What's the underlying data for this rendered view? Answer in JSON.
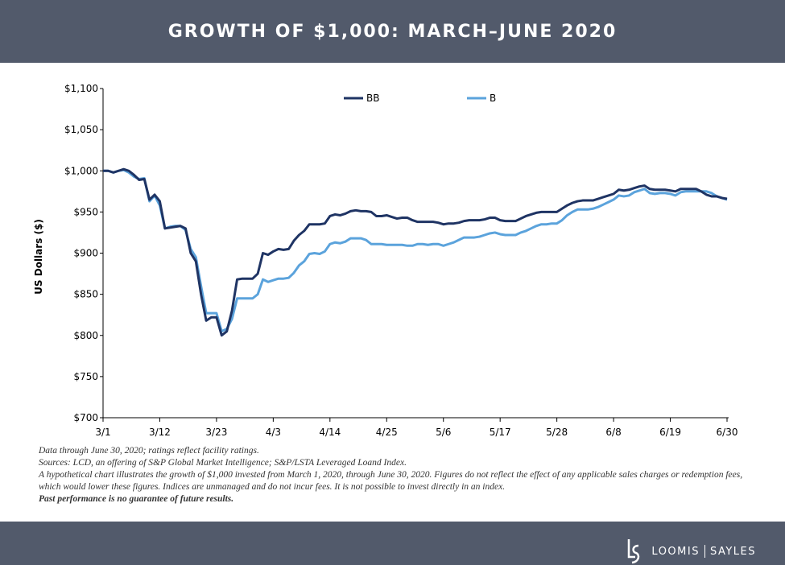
{
  "chart_data": {
    "type": "line",
    "title": "GROWTH OF $1,000: MARCH–JUNE 2020",
    "y_label": "US Dollars ($)",
    "categories": [
      "3/1",
      null,
      null,
      null,
      null,
      null,
      null,
      null,
      null,
      null,
      null,
      "3/12",
      null,
      null,
      null,
      null,
      null,
      null,
      null,
      null,
      null,
      null,
      "3/23",
      null,
      null,
      null,
      null,
      null,
      null,
      null,
      null,
      null,
      null,
      "4/3",
      null,
      null,
      null,
      null,
      null,
      null,
      null,
      null,
      null,
      null,
      "4/14",
      null,
      null,
      null,
      null,
      null,
      null,
      null,
      null,
      null,
      null,
      "4/25",
      null,
      null,
      null,
      null,
      null,
      null,
      null,
      null,
      null,
      null,
      "5/6",
      null,
      null,
      null,
      null,
      null,
      null,
      null,
      null,
      null,
      null,
      "5/17",
      null,
      null,
      null,
      null,
      null,
      null,
      null,
      null,
      null,
      null,
      "5/28",
      null,
      null,
      null,
      null,
      null,
      null,
      null,
      null,
      null,
      null,
      "6/8",
      null,
      null,
      null,
      null,
      null,
      null,
      null,
      null,
      null,
      null,
      "6/19",
      null,
      null,
      null,
      null,
      null,
      null,
      null,
      null,
      null,
      null,
      "6/30"
    ],
    "series": [
      {
        "name": "BB",
        "color": "#1f3464",
        "values": [
          1000,
          1000,
          998,
          1000,
          1002,
          1000,
          995,
          989,
          990,
          965,
          971,
          963,
          930,
          931,
          932,
          933,
          930,
          900,
          890,
          850,
          818,
          822,
          822,
          800,
          805,
          830,
          868,
          869,
          869,
          869,
          875,
          900,
          898,
          902,
          905,
          904,
          905,
          915,
          922,
          927,
          935,
          935,
          935,
          936,
          945,
          947,
          946,
          948,
          951,
          952,
          951,
          951,
          950,
          945,
          945,
          946,
          944,
          942,
          943,
          943,
          940,
          938,
          938,
          938,
          938,
          937,
          935,
          936,
          936,
          937,
          939,
          940,
          940,
          940,
          941,
          943,
          943,
          940,
          939,
          939,
          939,
          942,
          945,
          947,
          949,
          950,
          950,
          950,
          950,
          954,
          958,
          961,
          963,
          964,
          964,
          964,
          966,
          968,
          970,
          972,
          977,
          976,
          977,
          979,
          981,
          982,
          978,
          977,
          977,
          977,
          976,
          975,
          978,
          978,
          978,
          978,
          975,
          971,
          969,
          969,
          967,
          966
        ]
      },
      {
        "name": "B",
        "color": "#5ba3dc",
        "values": [
          1000,
          1000,
          998,
          1000,
          1001,
          998,
          993,
          990,
          991,
          963,
          970,
          958,
          930,
          932,
          933,
          933,
          928,
          905,
          895,
          860,
          827,
          827,
          827,
          805,
          808,
          820,
          845,
          845,
          845,
          845,
          850,
          868,
          865,
          867,
          869,
          869,
          870,
          876,
          885,
          890,
          899,
          900,
          899,
          902,
          911,
          913,
          912,
          914,
          918,
          918,
          918,
          916,
          911,
          911,
          911,
          910,
          910,
          910,
          910,
          909,
          909,
          911,
          911,
          910,
          911,
          911,
          909,
          911,
          913,
          916,
          919,
          919,
          919,
          920,
          922,
          924,
          925,
          923,
          922,
          922,
          922,
          925,
          927,
          930,
          933,
          935,
          935,
          936,
          936,
          940,
          946,
          950,
          953,
          953,
          953,
          954,
          956,
          959,
          962,
          965,
          970,
          969,
          970,
          974,
          976,
          978,
          973,
          972,
          973,
          973,
          972,
          970,
          974,
          975,
          975,
          975,
          975,
          975,
          973,
          969,
          967,
          965
        ]
      }
    ],
    "ylim": [
      700,
      1100
    ],
    "yticks": [
      {
        "value": 700,
        "label": "$700"
      },
      {
        "value": 750,
        "label": "$750"
      },
      {
        "value": 800,
        "label": "$800"
      },
      {
        "value": 850,
        "label": "$850"
      },
      {
        "value": 900,
        "label": "$900"
      },
      {
        "value": 950,
        "label": "$950"
      },
      {
        "value": 1000,
        "label": "$1,000"
      },
      {
        "value": 1050,
        "label": "$1,050"
      },
      {
        "value": 1100,
        "label": "$1,100"
      }
    ],
    "grid": false,
    "legend": "top"
  },
  "notes": [
    "Data through June 30, 2020; ratings reflect facility ratings.",
    "Sources: LCD, an offering of S&P Global Market Intelligence; S&P/LSTA Leveraged Loand Index.",
    "A hypothetical chart illustrates the growth of $1,000 invested from March 1, 2020, through June 30, 2020. Figures do not reflect the effect of any applicable sales charges or redemption fees, which would lower these figures. Indices are unmanaged and do not incur fees. It is not possible to invest directly in an index.",
    "Past performance is no guarantee of future results."
  ],
  "brand": [
    "LOOMIS",
    "SAYLES"
  ]
}
